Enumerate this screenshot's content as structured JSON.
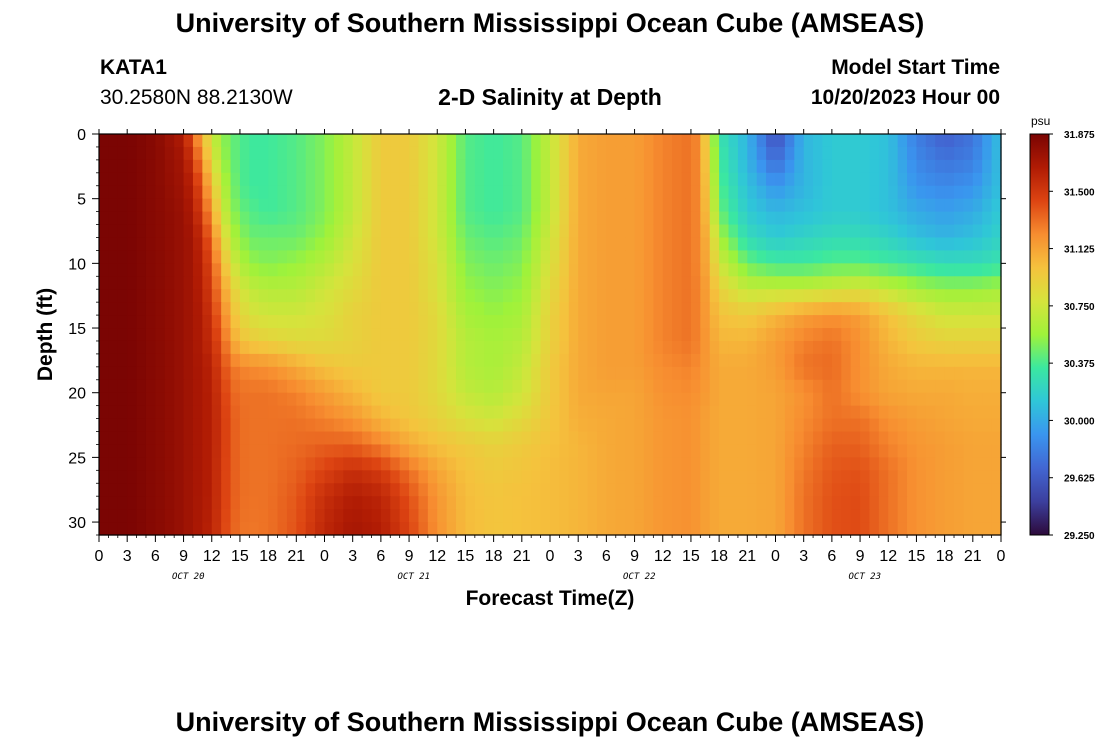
{
  "header": {
    "title": "University of Southern Mississippi Ocean Cube (AMSEAS)",
    "station": "KATA1",
    "coordinates": "30.2580N  88.2130W",
    "model_start_label": "Model Start Time",
    "model_start_value": "10/20/2023 Hour 00"
  },
  "footer": {
    "title": "University of Southern Mississippi Ocean Cube (AMSEAS)"
  },
  "chart_data": {
    "type": "heatmap",
    "title": "2-D Salinity at Depth",
    "xlabel": "Forecast Time(Z)",
    "ylabel": "Depth (ft)",
    "x_unit": "hours from 10/20/2023 00Z",
    "x_ticks": [
      0,
      3,
      6,
      9,
      12,
      15,
      18,
      21,
      24,
      27,
      30,
      33,
      36,
      39,
      42,
      45,
      48,
      51,
      54,
      57,
      60,
      63,
      66,
      69,
      72,
      75,
      78,
      81,
      84,
      87,
      90,
      93,
      96
    ],
    "x_tick_labels": [
      "0",
      "3",
      "6",
      "9",
      "12",
      "15",
      "18",
      "21",
      "0",
      "3",
      "6",
      "9",
      "12",
      "15",
      "18",
      "21",
      "0",
      "3",
      "6",
      "9",
      "12",
      "15",
      "18",
      "21",
      "0",
      "3",
      "6",
      "9",
      "12",
      "15",
      "18",
      "21",
      "0"
    ],
    "day_labels": [
      {
        "text": "OCT 20",
        "hour": 9.5
      },
      {
        "text": "OCT 21",
        "hour": 33.5
      },
      {
        "text": "OCT 22",
        "hour": 57.5
      },
      {
        "text": "OCT 23",
        "hour": 81.5
      }
    ],
    "xlim": [
      0,
      96
    ],
    "y_ticks": [
      0,
      5,
      10,
      15,
      20,
      25,
      30
    ],
    "ylim": [
      0,
      31
    ],
    "y_inverted": true,
    "colorbar": {
      "unit": "psu",
      "range": [
        29.25,
        31.875
      ],
      "ticks": [
        31.875,
        31.5,
        31.125,
        30.75,
        30.375,
        30.0,
        29.625,
        29.25
      ],
      "tick_labels": [
        "31.875",
        "31.500",
        "31.125",
        "30.750",
        "30.375",
        "30.000",
        "29.625",
        "29.250"
      ],
      "colors": [
        "#2d0a3a",
        "#3c3f9e",
        "#4266d2",
        "#3a95ef",
        "#2fc6d8",
        "#3be8a0",
        "#9ff23a",
        "#d6e33c",
        "#f5c23d",
        "#f78d30",
        "#dd4412",
        "#b01b04",
        "#7a0403"
      ]
    },
    "depth_levels": [
      0,
      2,
      4,
      6,
      8,
      10,
      12,
      14,
      16,
      18,
      20,
      22,
      24,
      26,
      28,
      31
    ],
    "time_keys": [
      0,
      3,
      6,
      9,
      10,
      11,
      12,
      13,
      14,
      15,
      16,
      18,
      21,
      24,
      27,
      30,
      33,
      36,
      39,
      42,
      45,
      48,
      51,
      54,
      57,
      60,
      63,
      64,
      65,
      66,
      69,
      72,
      75,
      78,
      81,
      84,
      87,
      90,
      93,
      96
    ],
    "salinity": [
      [
        31.87,
        31.87,
        31.82,
        31.65,
        31.35,
        31.05,
        30.75,
        30.55,
        30.45,
        30.4,
        30.35,
        30.35,
        30.4,
        30.5,
        30.7,
        30.95,
        30.95,
        30.75,
        30.4,
        30.35,
        30.4,
        30.7,
        31.1,
        31.15,
        31.15,
        31.25,
        31.3,
        31.2,
        30.75,
        30.3,
        30.05,
        29.55,
        30.05,
        30.15,
        30.15,
        30.1,
        29.8,
        29.65,
        29.75,
        30.1
      ],
      [
        31.87,
        31.87,
        31.82,
        31.7,
        31.5,
        31.2,
        30.85,
        30.6,
        30.45,
        30.4,
        30.35,
        30.35,
        30.4,
        30.5,
        30.7,
        30.95,
        30.95,
        30.75,
        30.4,
        30.35,
        30.4,
        30.7,
        31.1,
        31.15,
        31.15,
        31.25,
        31.3,
        31.2,
        30.8,
        30.35,
        30.05,
        29.7,
        30.05,
        30.15,
        30.15,
        30.1,
        29.85,
        29.75,
        29.8,
        30.1
      ],
      [
        31.87,
        31.87,
        31.82,
        31.72,
        31.6,
        31.35,
        31.0,
        30.7,
        30.5,
        30.4,
        30.35,
        30.35,
        30.4,
        30.5,
        30.7,
        30.95,
        30.95,
        30.75,
        30.4,
        30.35,
        30.4,
        30.7,
        31.1,
        31.15,
        31.15,
        31.25,
        31.3,
        31.2,
        30.85,
        30.4,
        30.1,
        29.9,
        30.05,
        30.15,
        30.15,
        30.1,
        29.9,
        29.85,
        29.9,
        30.1
      ],
      [
        31.87,
        31.87,
        31.82,
        31.75,
        31.65,
        31.45,
        31.15,
        30.8,
        30.55,
        30.45,
        30.4,
        30.35,
        30.4,
        30.5,
        30.7,
        30.95,
        30.95,
        30.75,
        30.4,
        30.35,
        30.4,
        30.7,
        31.1,
        31.15,
        31.15,
        31.25,
        31.3,
        31.2,
        30.9,
        30.45,
        30.15,
        30.05,
        30.1,
        30.15,
        30.15,
        30.1,
        30.0,
        29.95,
        30.0,
        30.15
      ],
      [
        31.87,
        31.87,
        31.82,
        31.75,
        31.7,
        31.55,
        31.3,
        30.95,
        30.65,
        30.55,
        30.45,
        30.45,
        30.45,
        30.55,
        30.75,
        30.95,
        30.95,
        30.75,
        30.45,
        30.4,
        30.45,
        30.75,
        31.1,
        31.15,
        31.15,
        31.25,
        31.3,
        31.2,
        31.0,
        30.6,
        30.25,
        30.15,
        30.2,
        30.25,
        30.25,
        30.2,
        30.1,
        30.05,
        30.1,
        30.2
      ],
      [
        31.87,
        31.87,
        31.82,
        31.75,
        31.7,
        31.6,
        31.4,
        31.1,
        30.8,
        30.65,
        30.55,
        30.5,
        30.55,
        30.65,
        30.8,
        30.95,
        30.95,
        30.8,
        30.5,
        30.45,
        30.5,
        30.8,
        31.1,
        31.15,
        31.15,
        31.25,
        31.3,
        31.2,
        31.05,
        30.75,
        30.45,
        30.35,
        30.35,
        30.4,
        30.4,
        30.35,
        30.3,
        30.25,
        30.25,
        30.3
      ],
      [
        31.87,
        31.87,
        31.82,
        31.75,
        31.7,
        31.62,
        31.45,
        31.2,
        30.95,
        30.8,
        30.7,
        30.65,
        30.65,
        30.75,
        30.85,
        30.95,
        30.95,
        30.8,
        30.55,
        30.5,
        30.55,
        30.85,
        31.1,
        31.15,
        31.15,
        31.25,
        31.3,
        31.22,
        31.1,
        30.9,
        30.7,
        30.7,
        30.7,
        30.75,
        30.8,
        30.7,
        30.6,
        30.55,
        30.55,
        30.6
      ],
      [
        31.87,
        31.87,
        31.82,
        31.75,
        31.7,
        31.65,
        31.5,
        31.3,
        31.05,
        30.9,
        30.8,
        30.75,
        30.75,
        30.8,
        30.9,
        30.95,
        30.95,
        30.85,
        30.6,
        30.55,
        30.6,
        30.9,
        31.1,
        31.15,
        31.15,
        31.25,
        31.3,
        31.22,
        31.12,
        31.0,
        30.95,
        31.05,
        31.15,
        31.2,
        31.15,
        31.0,
        30.85,
        30.75,
        30.75,
        30.75
      ],
      [
        31.87,
        31.87,
        31.82,
        31.75,
        31.7,
        31.65,
        31.55,
        31.38,
        31.15,
        31.0,
        30.95,
        30.9,
        30.85,
        30.85,
        30.9,
        30.95,
        30.95,
        30.85,
        30.65,
        30.6,
        30.65,
        30.9,
        31.1,
        31.15,
        31.15,
        31.25,
        31.3,
        31.22,
        31.15,
        31.05,
        31.05,
        31.15,
        31.25,
        31.3,
        31.2,
        31.05,
        30.95,
        30.9,
        30.9,
        30.9
      ],
      [
        31.87,
        31.87,
        31.82,
        31.75,
        31.7,
        31.68,
        31.6,
        31.45,
        31.3,
        31.25,
        31.22,
        31.2,
        31.1,
        31.0,
        30.95,
        30.95,
        30.95,
        30.85,
        30.65,
        30.6,
        30.7,
        30.95,
        31.1,
        31.15,
        31.15,
        31.22,
        31.25,
        31.2,
        31.15,
        31.1,
        31.1,
        31.15,
        31.3,
        31.32,
        31.2,
        31.1,
        31.05,
        31.05,
        31.05,
        31.05
      ],
      [
        31.87,
        31.87,
        31.82,
        31.75,
        31.7,
        31.68,
        31.62,
        31.5,
        31.35,
        31.3,
        31.3,
        31.3,
        31.25,
        31.15,
        31.05,
        30.95,
        30.95,
        30.85,
        30.7,
        30.65,
        30.75,
        30.95,
        31.1,
        31.12,
        31.12,
        31.2,
        31.22,
        31.18,
        31.15,
        31.1,
        31.1,
        31.12,
        31.2,
        31.3,
        31.2,
        31.12,
        31.1,
        31.1,
        31.08,
        31.08
      ],
      [
        31.87,
        31.87,
        31.82,
        31.75,
        31.7,
        31.68,
        31.62,
        31.52,
        31.38,
        31.32,
        31.3,
        31.3,
        31.3,
        31.25,
        31.18,
        31.05,
        30.97,
        30.9,
        30.8,
        30.75,
        30.85,
        30.97,
        31.08,
        31.1,
        31.12,
        31.18,
        31.2,
        31.16,
        31.13,
        31.1,
        31.1,
        31.12,
        31.22,
        31.3,
        31.3,
        31.2,
        31.15,
        31.12,
        31.1,
        31.1
      ],
      [
        31.87,
        31.87,
        31.82,
        31.75,
        31.7,
        31.68,
        31.62,
        31.52,
        31.38,
        31.32,
        31.3,
        31.3,
        31.32,
        31.35,
        31.35,
        31.25,
        31.1,
        31.0,
        30.95,
        30.9,
        30.95,
        31.0,
        31.05,
        31.1,
        31.12,
        31.18,
        31.2,
        31.16,
        31.13,
        31.1,
        31.1,
        31.12,
        31.25,
        31.35,
        31.35,
        31.25,
        31.18,
        31.15,
        31.12,
        31.12
      ],
      [
        31.87,
        31.87,
        31.82,
        31.75,
        31.7,
        31.68,
        31.62,
        31.5,
        31.38,
        31.32,
        31.3,
        31.3,
        31.35,
        31.45,
        31.55,
        31.48,
        31.3,
        31.12,
        31.0,
        30.95,
        30.98,
        31.02,
        31.05,
        31.1,
        31.12,
        31.18,
        31.2,
        31.16,
        31.13,
        31.1,
        31.1,
        31.12,
        31.28,
        31.38,
        31.4,
        31.3,
        31.2,
        31.15,
        31.12,
        31.12
      ],
      [
        31.87,
        31.87,
        31.82,
        31.75,
        31.7,
        31.68,
        31.62,
        31.5,
        31.38,
        31.32,
        31.3,
        31.3,
        31.38,
        31.55,
        31.65,
        31.6,
        31.4,
        31.18,
        31.02,
        30.98,
        31.0,
        31.02,
        31.05,
        31.1,
        31.12,
        31.18,
        31.2,
        31.16,
        31.13,
        31.1,
        31.1,
        31.12,
        31.3,
        31.4,
        31.42,
        31.3,
        31.2,
        31.15,
        31.12,
        31.12
      ],
      [
        31.87,
        31.87,
        31.82,
        31.75,
        31.7,
        31.66,
        31.6,
        31.48,
        31.36,
        31.3,
        31.28,
        31.3,
        31.4,
        31.6,
        31.7,
        31.65,
        31.45,
        31.2,
        31.03,
        30.98,
        31.0,
        31.02,
        31.05,
        31.1,
        31.12,
        31.18,
        31.2,
        31.16,
        31.13,
        31.1,
        31.1,
        31.12,
        31.3,
        31.4,
        31.42,
        31.3,
        31.2,
        31.15,
        31.12,
        31.12
      ]
    ]
  }
}
